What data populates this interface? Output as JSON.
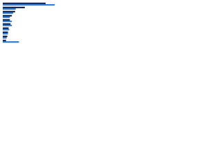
{
  "chart_data": {
    "type": "bar",
    "orientation": "horizontal",
    "categories": [
      null,
      null,
      null,
      null,
      null,
      null,
      null,
      null,
      null,
      null
    ],
    "series": [
      {
        "color": "#1b2a4a",
        "values": [
          66,
          34,
          19,
          14,
          11,
          12,
          9,
          8,
          7,
          5
        ]
      },
      {
        "color": "#2f7ed8",
        "values": [
          80,
          20,
          16,
          11,
          14,
          14,
          10,
          8,
          6,
          25
        ]
      }
    ],
    "xlim": [
      0,
      100
    ],
    "grid": false
  }
}
